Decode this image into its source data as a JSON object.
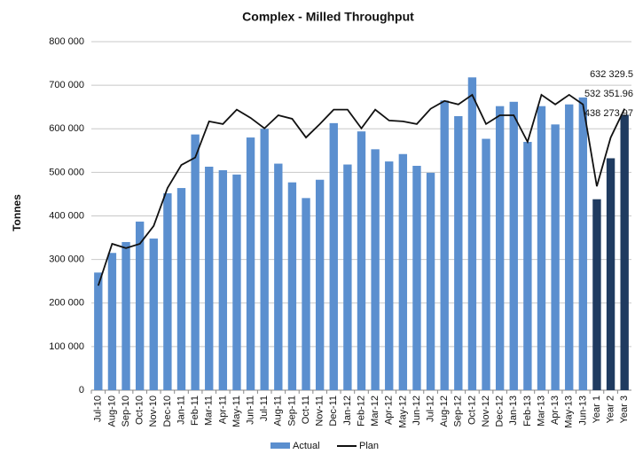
{
  "chart_data": {
    "type": "bar_line",
    "title": "Complex - Milled Throughput",
    "y_label": "Tonnes",
    "categories": [
      "Jul-10",
      "Aug-10",
      "Sep-10",
      "Oct-10",
      "Nov-10",
      "Dec-10",
      "Jan-11",
      "Feb-11",
      "Mar-11",
      "Apr-11",
      "May-11",
      "Jun-11",
      "Jul-11",
      "Aug-11",
      "Sep-11",
      "Oct-11",
      "Nov-11",
      "Dec-11",
      "Jan-12",
      "Feb-12",
      "Mar-12",
      "Apr-12",
      "May-12",
      "Jun-12",
      "Jul-12",
      "Aug-12",
      "Sep-12",
      "Oct-12",
      "Nov-12",
      "Dec-12",
      "Jan-13",
      "Feb-13",
      "Mar-13",
      "Apr-13",
      "May-13",
      "Jun-13",
      "Year 1",
      "Year 2",
      "Year 3"
    ],
    "series": [
      {
        "name": "Actual",
        "type": "bar",
        "color": "#5b8fcf",
        "values": [
          270000,
          315000,
          340000,
          387000,
          348000,
          452000,
          464000,
          587000,
          513000,
          505000,
          495000,
          580000,
          600000,
          520000,
          477000,
          441000,
          483000,
          613000,
          518000,
          594000,
          553000,
          525000,
          542000,
          515000,
          499000,
          665000,
          629000,
          718000,
          577000,
          652000,
          662000,
          570000,
          652000,
          610000,
          656000,
          672000,
          438273.97,
          532351.96,
          632329.5
        ],
        "colors": [
          "#5b8fcf",
          "#5b8fcf",
          "#5b8fcf",
          "#5b8fcf",
          "#5b8fcf",
          "#5b8fcf",
          "#5b8fcf",
          "#5b8fcf",
          "#5b8fcf",
          "#5b8fcf",
          "#5b8fcf",
          "#5b8fcf",
          "#5b8fcf",
          "#5b8fcf",
          "#5b8fcf",
          "#5b8fcf",
          "#5b8fcf",
          "#5b8fcf",
          "#5b8fcf",
          "#5b8fcf",
          "#5b8fcf",
          "#5b8fcf",
          "#5b8fcf",
          "#5b8fcf",
          "#5b8fcf",
          "#5b8fcf",
          "#5b8fcf",
          "#5b8fcf",
          "#5b8fcf",
          "#5b8fcf",
          "#5b8fcf",
          "#5b8fcf",
          "#5b8fcf",
          "#5b8fcf",
          "#5b8fcf",
          "#5b8fcf",
          "#1f3b60",
          "#1f3b60",
          "#1f3b60"
        ],
        "value_labels": [
          null,
          null,
          null,
          null,
          null,
          null,
          null,
          null,
          null,
          null,
          null,
          null,
          null,
          null,
          null,
          null,
          null,
          null,
          null,
          null,
          null,
          null,
          null,
          null,
          null,
          null,
          null,
          null,
          null,
          null,
          null,
          null,
          null,
          null,
          null,
          null,
          "438 273.97",
          "532 351.96",
          "632 329.5"
        ]
      },
      {
        "name": "Plan",
        "type": "line",
        "color": "#111111",
        "values": [
          240000,
          336000,
          326000,
          336000,
          377000,
          464000,
          517000,
          534000,
          617000,
          611000,
          644000,
          625000,
          601000,
          631000,
          623000,
          580000,
          611000,
          644000,
          644000,
          601000,
          644000,
          619000,
          617000,
          611000,
          646000,
          664000,
          656000,
          678000,
          611000,
          631000,
          631000,
          570000,
          678000,
          656000,
          678000,
          656000,
          468000,
          580000,
          646000
        ]
      }
    ],
    "ylim": [
      0,
      800000
    ],
    "yticks": [
      {
        "value": 0,
        "label": "0"
      },
      {
        "value": 100000,
        "label": "100 000"
      },
      {
        "value": 200000,
        "label": "200 000"
      },
      {
        "value": 300000,
        "label": "300 000"
      },
      {
        "value": 400000,
        "label": "400 000"
      },
      {
        "value": 500000,
        "label": "500 000"
      },
      {
        "value": 600000,
        "label": "600 000"
      },
      {
        "value": 700000,
        "label": "700 000"
      },
      {
        "value": 800000,
        "label": "800 000"
      }
    ],
    "grid": true,
    "legend": "bottom"
  }
}
